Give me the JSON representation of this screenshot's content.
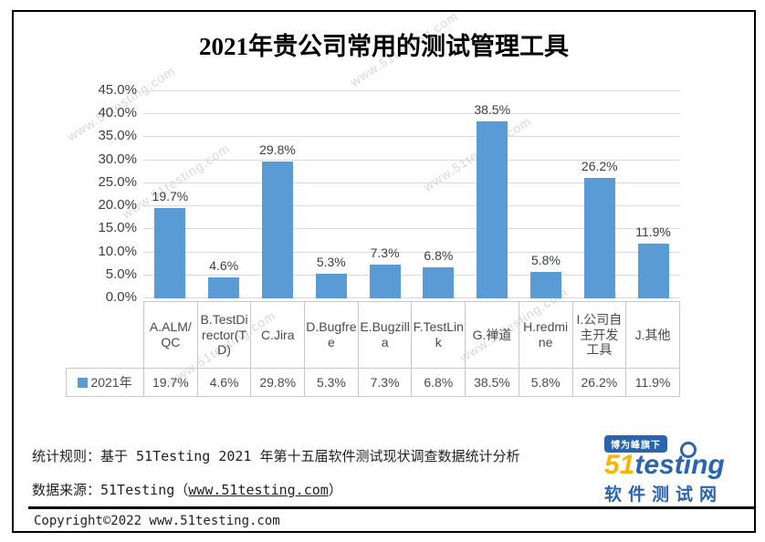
{
  "title": "2021年贵公司常用的测试管理工具",
  "watermark": "www.51testing.com",
  "chart_data": {
    "type": "bar",
    "title": "2021年贵公司常用的测试管理工具",
    "categories": [
      "A.ALM/QC",
      "B.TestDirector(TD)",
      "C.Jira",
      "D.Bugfree",
      "E.Bugzilla",
      "F.TestLink",
      "G.禅道",
      "H.redmine",
      "I.公司自主开发工具",
      "J.其他"
    ],
    "values": [
      19.7,
      4.6,
      29.8,
      5.3,
      7.3,
      6.8,
      38.5,
      5.8,
      26.2,
      11.9
    ],
    "value_labels": [
      "19.7%",
      "4.6%",
      "29.8%",
      "5.3%",
      "7.3%",
      "6.8%",
      "38.5%",
      "5.8%",
      "26.2%",
      "11.9%"
    ],
    "series_name": "2021年",
    "xlabel": "",
    "ylabel": "",
    "ylim": [
      0,
      45
    ],
    "yticks": [
      "45.0%",
      "40.0%",
      "35.0%",
      "30.0%",
      "25.0%",
      "20.0%",
      "15.0%",
      "10.0%",
      "5.0%",
      "0.0%"
    ],
    "grid": true,
    "legend_position": "bottom-table",
    "bar_color": "#5B9BD5",
    "gridline_color": "#d9d9d9"
  },
  "footer": {
    "stat_rule": "统计规则：基于 51Testing 2021 年第十五届软件测试现状调查数据统计分析",
    "source_prefix": "数据来源：51Testing（",
    "source_link": "www.51testing.com",
    "source_suffix": "）",
    "copyright": "Copyright©2022 www.51testing.com"
  },
  "logo": {
    "badge": "博为峰旗下",
    "brand_51": "51",
    "brand_test": "test",
    "brand_i": "ı",
    "brand_ng": "ng",
    "subtitle": "软件测试网",
    "brand_blue": "#2a64ad",
    "brand_yellow": "#f7b500"
  }
}
